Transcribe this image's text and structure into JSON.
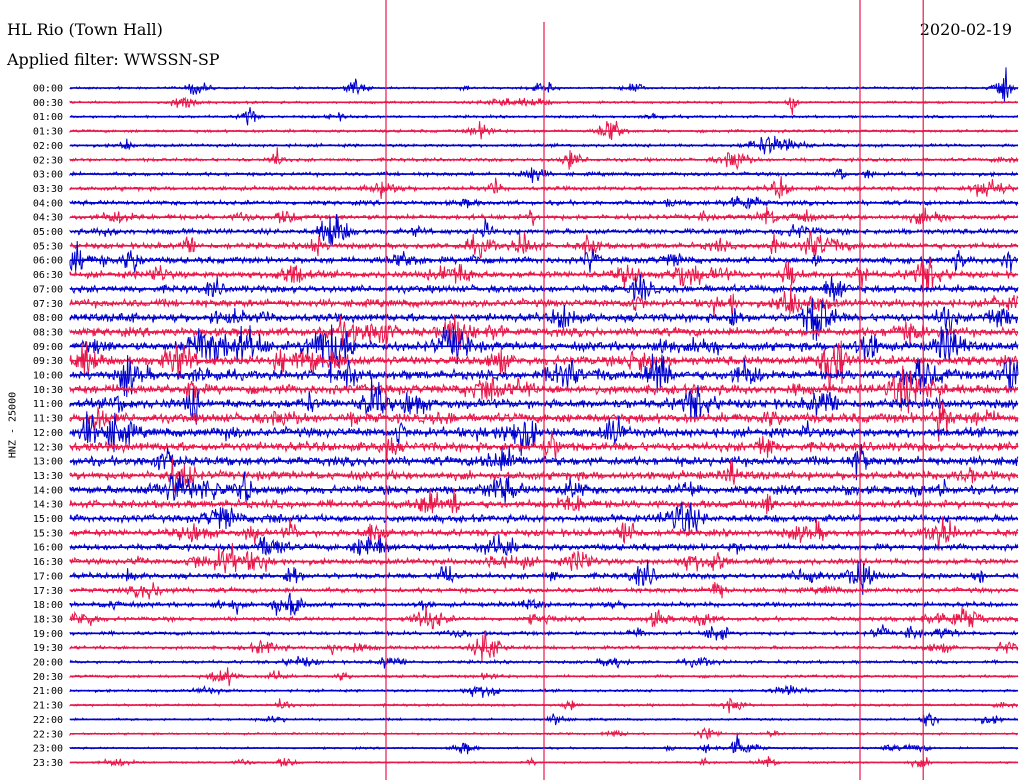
{
  "header": {
    "station": "HL Rio (Town Hall)",
    "filter": "Applied filter: WWSSN-SP",
    "date": "2020-02-19"
  },
  "chart_data": {
    "type": "line",
    "title": "HL Rio (Town Hall)",
    "subtitle": "Applied filter: WWSSN-SP",
    "ylabel": "HNZ - 25000",
    "xlabel": "",
    "rows": [
      "00:00",
      "00:30",
      "01:00",
      "01:30",
      "02:00",
      "02:30",
      "03:00",
      "03:30",
      "04:00",
      "04:30",
      "05:00",
      "05:30",
      "06:00",
      "06:30",
      "07:00",
      "07:30",
      "08:00",
      "08:30",
      "09:00",
      "09:30",
      "10:00",
      "10:30",
      "11:00",
      "11:30",
      "12:00",
      "12:30",
      "13:00",
      "13:30",
      "14:00",
      "14:30",
      "15:00",
      "15:30",
      "16:00",
      "16:30",
      "17:00",
      "17:30",
      "18:00",
      "18:30",
      "19:00",
      "19:30",
      "20:00",
      "20:30",
      "21:00",
      "21:30",
      "22:00",
      "22:30",
      "23:00",
      "23:30"
    ],
    "row_colors": [
      "#0000cc",
      "#e8174a"
    ],
    "minute_markers": [
      10,
      15,
      25,
      27
    ]
  }
}
